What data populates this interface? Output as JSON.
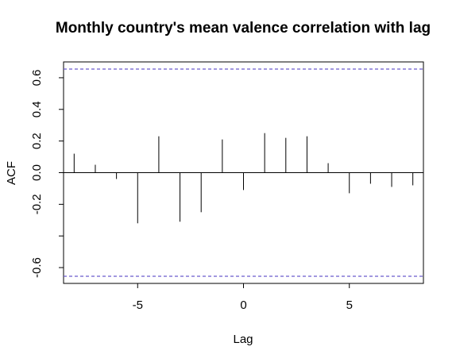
{
  "chart_data": {
    "type": "bar",
    "subtype": "acf",
    "title": "Monthly country's mean valence correlation with lag",
    "xlabel": "Lag",
    "ylabel": "ACF",
    "xlim": [
      -8.5,
      8.5
    ],
    "ylim": [
      -0.7,
      0.7
    ],
    "xticks": [
      -5,
      0,
      5
    ],
    "xtick_labels": [
      "-5",
      "0",
      "5"
    ],
    "yticks": [
      -0.6,
      -0.2,
      0.0,
      0.2,
      0.4,
      0.6
    ],
    "ytick_labels": [
      "-0.6",
      "-0.2",
      "0.0",
      "0.2",
      "0.4",
      "0.6"
    ],
    "ytick_marks_unlabeled": [
      -0.4
    ],
    "lags": [
      -8,
      -7,
      -6,
      -5,
      -4,
      -3,
      -2,
      -1,
      0,
      1,
      2,
      3,
      4,
      5,
      6,
      7,
      8
    ],
    "values": [
      0.12,
      0.05,
      -0.04,
      -0.32,
      0.23,
      -0.31,
      -0.25,
      0.21,
      -0.11,
      0.25,
      0.22,
      0.23,
      0.06,
      -0.13,
      -0.07,
      -0.09,
      -0.08
    ],
    "confidence_bound": 0.655,
    "zero_line": true,
    "grid": false,
    "colors": {
      "bars": "#000000",
      "zero_line": "#000000",
      "confidence": "#6a5acd",
      "frame": "#000000"
    }
  }
}
